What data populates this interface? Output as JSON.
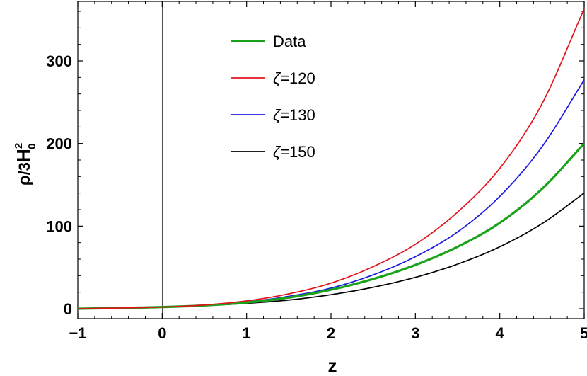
{
  "chart_data": {
    "type": "line",
    "title": "",
    "xlabel": "z",
    "ylabel": {
      "rho": "ρ",
      "slash_three": "/3",
      "H": "H",
      "sup": "2",
      "sub": "0"
    },
    "xlim": [
      -1,
      5
    ],
    "ylim": [
      -12,
      372
    ],
    "x_ticks": [
      {
        "value": -1,
        "label": "−1"
      },
      {
        "value": 0,
        "label": "0"
      },
      {
        "value": 1,
        "label": "1"
      },
      {
        "value": 2,
        "label": "2"
      },
      {
        "value": 3,
        "label": "3"
      },
      {
        "value": 4,
        "label": "4"
      },
      {
        "value": 5,
        "label": "5"
      }
    ],
    "x_minor_step": 0.2,
    "y_ticks": [
      {
        "value": 0,
        "label": "0"
      },
      {
        "value": 100,
        "label": "100"
      },
      {
        "value": 200,
        "label": "200"
      },
      {
        "value": 300,
        "label": "300"
      }
    ],
    "y_minor_step": 20,
    "grid": false,
    "zero_line_x": 0,
    "legend_position": "top-center",
    "x": [
      -1,
      -0.5,
      0,
      0.5,
      1,
      1.5,
      2,
      2.5,
      3,
      3.5,
      4,
      4.5,
      5
    ],
    "series": [
      {
        "name": "Data",
        "name_parts": {
          "symbol": "",
          "text": "Data"
        },
        "color": "#1aa31a",
        "stroke": "thick",
        "values": [
          0,
          0.9,
          2,
          4,
          7.5,
          13.5,
          23,
          36,
          53,
          75,
          104,
          145,
          200
        ]
      },
      {
        "name": "ζ=120",
        "name_parts": {
          "symbol": "ζ",
          "text": "=120"
        },
        "color": "#e0151b",
        "stroke": "thin",
        "values": [
          0,
          0.9,
          2,
          4.5,
          9.5,
          18,
          31,
          51,
          78,
          117,
          170,
          248,
          363
        ]
      },
      {
        "name": "ζ=130",
        "name_parts": {
          "symbol": "ζ",
          "text": "=130"
        },
        "color": "#1818e0",
        "stroke": "thin",
        "values": [
          0,
          0.9,
          2,
          4.3,
          8.2,
          15,
          25,
          41,
          63,
          93,
          136,
          196,
          277
        ]
      },
      {
        "name": "ζ=150",
        "name_parts": {
          "symbol": "ζ",
          "text": "=150"
        },
        "color": "#000000",
        "stroke": "thin",
        "values": [
          0,
          0.8,
          2,
          3.8,
          6.5,
          10.5,
          17,
          26,
          38,
          54,
          75,
          103,
          140
        ]
      }
    ]
  }
}
